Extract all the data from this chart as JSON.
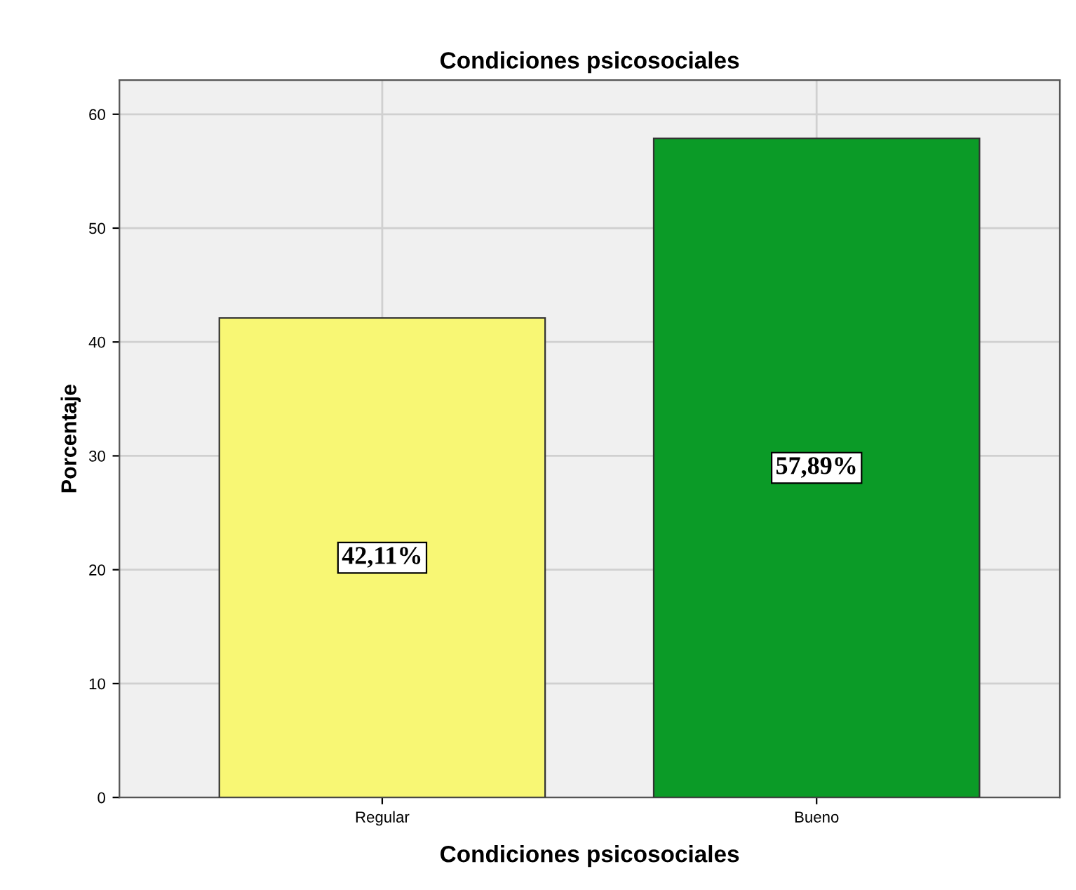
{
  "chart_data": {
    "type": "bar",
    "title": "Condiciones psicosociales",
    "xlabel": "Condiciones psicosociales",
    "ylabel": "Porcentaje",
    "categories": [
      "Regular",
      "Bueno"
    ],
    "values": [
      42.11,
      57.89
    ],
    "colors": [
      "#f8f774",
      "#0b9b27"
    ],
    "value_labels": [
      "42,11%",
      "57,89%"
    ],
    "ylim": [
      0,
      63
    ],
    "yticks": [
      0,
      10,
      20,
      30,
      40,
      50,
      60
    ],
    "grid": true
  }
}
